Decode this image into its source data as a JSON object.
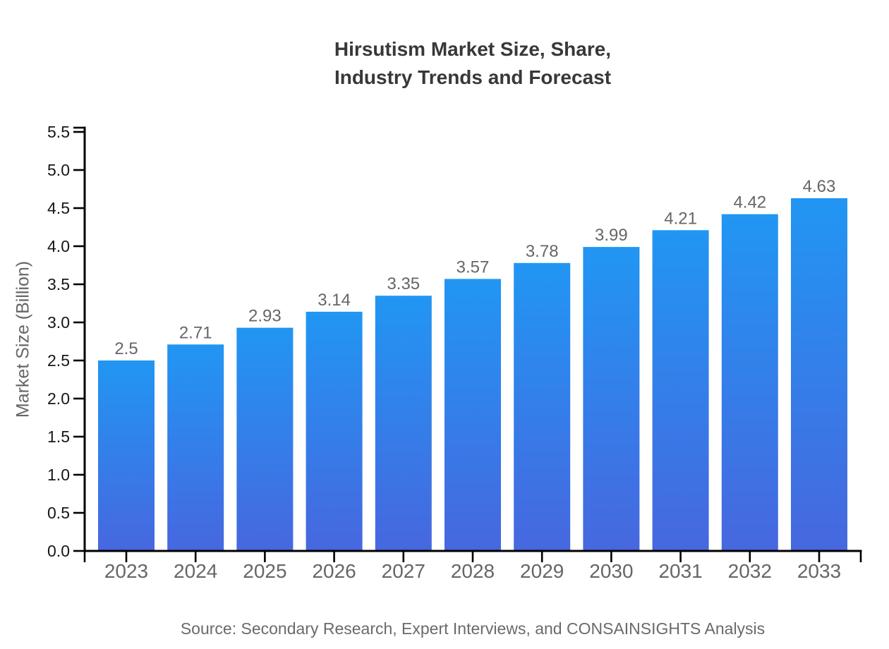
{
  "page": {
    "background": "#ffffff"
  },
  "header": {
    "title_lines": [
      "Hirsutism Market Size, Share,",
      "Industry Trends and Forecast"
    ]
  },
  "footer": {
    "source": "Source: Secondary Research, Expert Interviews, and CONSAINSIGHTS Analysis"
  },
  "chart_data": {
    "type": "bar",
    "title": "Hirsutism Market Size, Share, Industry Trends and Forecast",
    "categories": [
      "2023",
      "2024",
      "2025",
      "2026",
      "2027",
      "2028",
      "2029",
      "2030",
      "2031",
      "2032",
      "2033"
    ],
    "values": [
      2.5,
      2.71,
      2.93,
      3.14,
      3.35,
      3.57,
      3.78,
      3.99,
      4.21,
      4.42,
      4.63
    ],
    "value_labels": [
      "2.5",
      "2.71",
      "2.93",
      "3.14",
      "3.35",
      "3.57",
      "3.78",
      "3.99",
      "4.21",
      "4.42",
      "4.63"
    ],
    "xlabel": "",
    "ylabel": "Market Size (Billion)",
    "ylim": [
      0,
      5.5
    ],
    "ytick_step": 0.5,
    "ytick_labels": [
      "0.0",
      "0.5",
      "1.0",
      "1.5",
      "2.0",
      "2.5",
      "3.0",
      "3.5",
      "4.0",
      "4.5",
      "5.0",
      "5.5"
    ],
    "grid": false,
    "legend": "none",
    "colors": {
      "bar_top": "#2196f3",
      "bar_bottom": "#4767df",
      "axis": "#000000",
      "ytick_label": "#161616",
      "xtick_label": "#666666",
      "value_label": "#666666",
      "title": "#383838",
      "ylabel": "#666666",
      "source": "#6a6a6a"
    }
  }
}
